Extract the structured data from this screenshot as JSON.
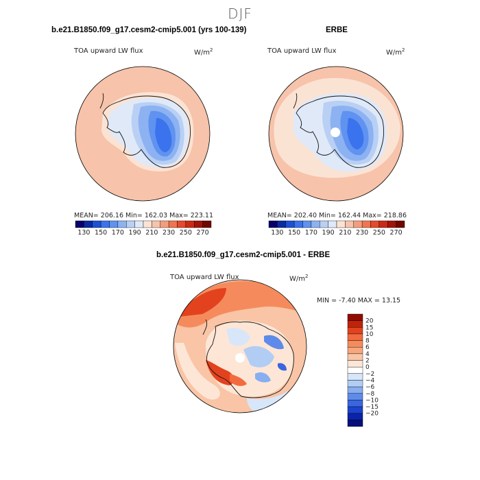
{
  "figure": {
    "title": "DJF"
  },
  "panels": [
    {
      "title": "b.e21.B1850.f09_g17.cesm2-cmip5.001 (yrs 100-139)",
      "variable": "TOA upward LW flux",
      "units": "W/m",
      "units_sup": "2",
      "stats": "MEAN= 206.16   Min= 162.03   Max= 223.11"
    },
    {
      "title": "ERBE",
      "variable": "TOA upward LW flux",
      "units": "W/m",
      "units_sup": "2",
      "stats": "MEAN= 202.40   Min= 162.44   Max= 218.86"
    },
    {
      "title": "b.e21.B1850.f09_g17.cesm2-cmip5.001 - ERBE",
      "variable": "TOA upward LW flux",
      "units": "W/m",
      "units_sup": "2",
      "stats": "MIN =   -7.40  MAX =   13.15"
    }
  ],
  "colorbar_abs": {
    "ticks": [
      "130",
      "150",
      "170",
      "190",
      "210",
      "230",
      "250",
      "270"
    ],
    "colors": [
      "#08006b",
      "#0a2ba3",
      "#1f4fd6",
      "#3b73ee",
      "#6092f0",
      "#8db2f2",
      "#b9d0f4",
      "#dfe9f8",
      "#fbe3d4",
      "#f7c3aa",
      "#f39d7e",
      "#ef7550",
      "#e6492b",
      "#c92a17",
      "#a21409",
      "#720600"
    ]
  },
  "colorbar_diff": {
    "ticks": [
      "20",
      "15",
      "10",
      "8",
      "6",
      "4",
      "2",
      "0",
      "−2",
      "−4",
      "−6",
      "−8",
      "−10",
      "−15",
      "−20"
    ],
    "colors": [
      "#8f0d00",
      "#bf2409",
      "#e3421f",
      "#f26a3e",
      "#f58b5c",
      "#f7a77e",
      "#f9c5a6",
      "#fde6d6",
      "#ffffff",
      "#d8e6f9",
      "#b2cdf4",
      "#87aef0",
      "#5e8bea",
      "#3a66e0",
      "#1c43cf",
      "#0a23a8",
      "#070f7a"
    ]
  }
}
